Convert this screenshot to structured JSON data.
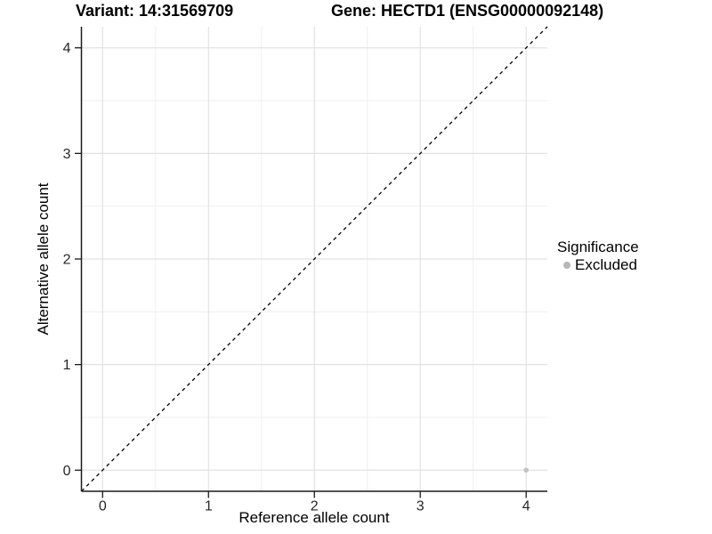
{
  "chart_data": {
    "type": "scatter",
    "title_left": "Variant: 14:31569709",
    "title_right": "Gene: HECTD1 (ENSG00000092148)",
    "xlabel": "Reference allele count",
    "ylabel": "Alternative allele count",
    "xlim": [
      -0.2,
      4.2
    ],
    "ylim": [
      -0.2,
      4.2
    ],
    "xticks": [
      0,
      1,
      2,
      3,
      4
    ],
    "yticks": [
      0,
      1,
      2,
      3,
      4
    ],
    "xminor": [
      0.5,
      1.5,
      2.5,
      3.5
    ],
    "yminor": [
      0.5,
      1.5,
      2.5,
      3.5
    ],
    "grid": "major+minor",
    "identity_line": {
      "slope": 1,
      "intercept": 0,
      "style": "dashed",
      "color": "#000000"
    },
    "series": [
      {
        "name": "Excluded",
        "color": "#c2c2c2",
        "points": [
          {
            "x": 4,
            "y": 0
          }
        ]
      }
    ],
    "legend": {
      "title": "Significance",
      "position": "right",
      "items": [
        {
          "label": "Excluded",
          "color": "#b6b6b6"
        }
      ]
    }
  },
  "colors": {
    "background": "#ffffff",
    "grid_major": "#e2e2e2",
    "grid_minor": "#efefef",
    "axis": "#1a1a1a",
    "tick_label": "#262626"
  }
}
